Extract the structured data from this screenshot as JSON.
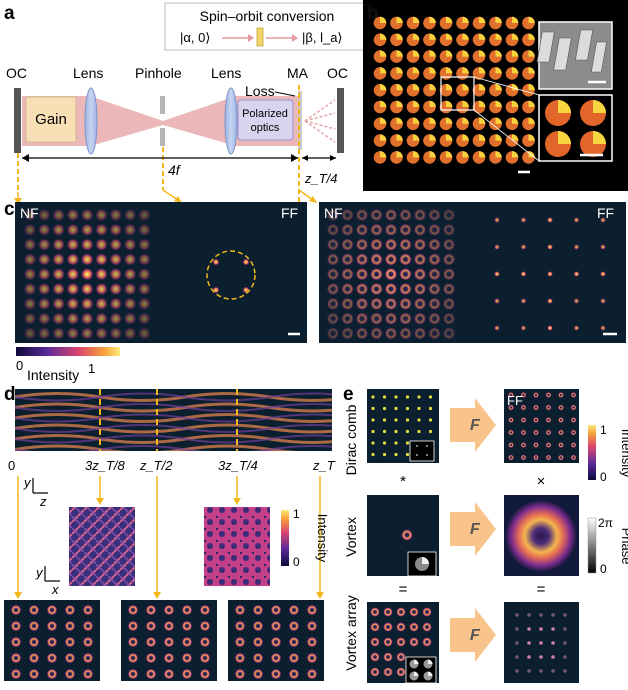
{
  "panel_labels": {
    "a": "a",
    "b": "b",
    "c": "c",
    "d": "d",
    "e": "e"
  },
  "colors": {
    "gain_fill": "#f8dfb6",
    "beam": "#e6a5a8",
    "lens": "#8aa6d8",
    "polarized_fill": "#d8d3ef",
    "marker": "#f2b81a",
    "dark_panel": "#0b1f2e"
  },
  "spin_orbit_conversion": {
    "title": "Spin–orbit conversion",
    "input_state": "|α, 0⟩",
    "output_state": "|β, l_a⟩"
  },
  "cavity": {
    "oc_left": "OC",
    "lens1": "Lens",
    "pinhole": "Pinhole",
    "lens2": "Lens",
    "ma": "MA",
    "oc_right": "OC",
    "gain": "Gain",
    "loss": "Loss",
    "polarized_optics_1": "Polarized",
    "polarized_optics_2": "optics",
    "distance_4f": "4f",
    "zt_quarter": "z_T/4"
  },
  "panel_c": {
    "left": {
      "nf": "NF",
      "ff": "FF"
    },
    "right": {
      "nf": "NF",
      "ff": "FF"
    },
    "colorbar": {
      "min": "0",
      "max": "1",
      "label": "Intensity"
    }
  },
  "panel_d": {
    "ticks": [
      "0",
      "3z_T/8",
      "z_T/2",
      "3z_T/4",
      "z_T"
    ],
    "axis_y": "y",
    "axis_z": "z",
    "axis_x": "x",
    "colorbar": {
      "min": "0",
      "max": "1",
      "label": "Intensity"
    }
  },
  "panel_e": {
    "row_labels": [
      "Dirac comb",
      "Vortex",
      "Vortex array"
    ],
    "operator": "F",
    "ff_label": "FF",
    "symbols": {
      "conv": "*",
      "times": "×",
      "eq1": "=",
      "eq2": "="
    },
    "intensity_bar": {
      "min": "0",
      "max": "1",
      "label": "Intensity"
    },
    "phase_bar": {
      "min": "0",
      "max": "2π",
      "label": "Phase"
    }
  }
}
